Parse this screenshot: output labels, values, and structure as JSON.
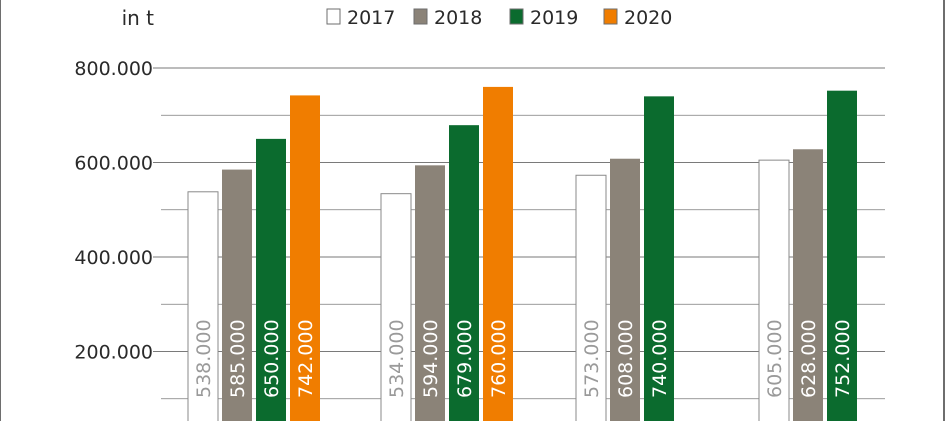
{
  "chart_data": {
    "type": "bar",
    "ylabel": "in t",
    "ylim": [
      0,
      850000
    ],
    "y_ticks": [
      200000,
      400000,
      600000,
      800000
    ],
    "y_tick_labels": [
      "200.000",
      "400.000",
      "600.000",
      "800.000"
    ],
    "grid": true,
    "legend_position": "top-center",
    "series": [
      {
        "name": "2017",
        "color": "#ffffff",
        "values": [
          538000,
          534000,
          573000,
          605000
        ],
        "labels": [
          "538.000",
          "534.000",
          "573.000",
          "605.000"
        ]
      },
      {
        "name": "2018",
        "color": "#8b8378",
        "values": [
          585000,
          594000,
          608000,
          628000
        ],
        "labels": [
          "585.000",
          "594.000",
          "608.000",
          "628.000"
        ]
      },
      {
        "name": "2019",
        "color": "#0b6b2e",
        "values": [
          650000,
          679000,
          740000,
          752000
        ],
        "labels": [
          "650.000",
          "679.000",
          "740.000",
          "752.000"
        ]
      },
      {
        "name": "2020",
        "color": "#f07d00",
        "values": [
          742000,
          760000,
          null,
          null
        ],
        "labels": [
          "742.000",
          "760.000",
          "",
          ""
        ]
      }
    ]
  }
}
